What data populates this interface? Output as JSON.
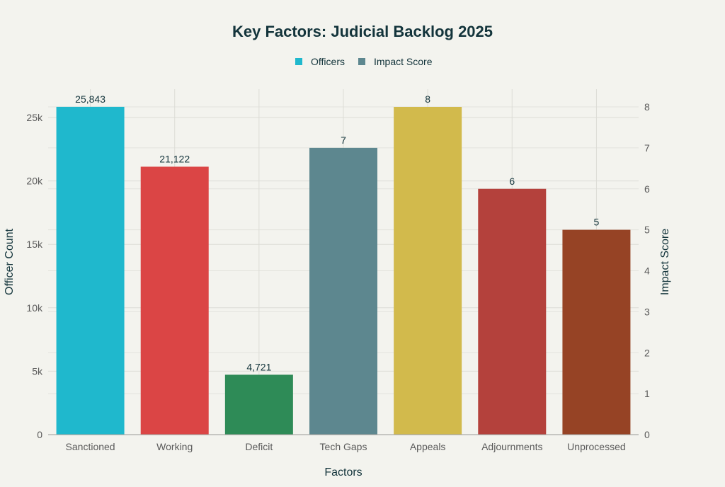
{
  "chart_data": {
    "type": "bar",
    "title": "Key Factors: Judicial Backlog 2025",
    "xlabel": "Factors",
    "ylabel": "Officer Count",
    "y2label": "Impact Score",
    "ylim": [
      0,
      25000
    ],
    "y2lim": [
      0,
      8
    ],
    "yticks": [
      0,
      5000,
      10000,
      15000,
      20000,
      25000
    ],
    "ytick_labels": [
      "0",
      "5k",
      "10k",
      "15k",
      "20k",
      "25k"
    ],
    "y2ticks": [
      0,
      1,
      2,
      3,
      4,
      5,
      6,
      7,
      8
    ],
    "y2tick_labels": [
      "0",
      "1",
      "2",
      "3",
      "4",
      "5",
      "6",
      "7",
      "8"
    ],
    "grid": true,
    "legend_position": "top-center",
    "legend": [
      {
        "name": "Officers",
        "color": "#1FB8CD"
      },
      {
        "name": "Impact Score",
        "color": "#5D878F"
      }
    ],
    "bars": [
      {
        "category": "Sanctioned",
        "series": "Officers",
        "value": 25843,
        "label": "25,843",
        "axis": "left",
        "color": "#1FB8CD"
      },
      {
        "category": "Working",
        "series": "Officers",
        "value": 21122,
        "label": "21,122",
        "axis": "left",
        "color": "#DB4545"
      },
      {
        "category": "Deficit",
        "series": "Officers",
        "value": 4721,
        "label": "4,721",
        "axis": "left",
        "color": "#2E8B57"
      },
      {
        "category": "Tech Gaps",
        "series": "Impact Score",
        "value": 7,
        "label": "7",
        "axis": "right",
        "color": "#5D878F"
      },
      {
        "category": "Appeals",
        "series": "Impact Score",
        "value": 8,
        "label": "8",
        "axis": "right",
        "color": "#D2BA4C"
      },
      {
        "category": "Adjournments",
        "series": "Impact Score",
        "value": 6,
        "label": "6",
        "axis": "right",
        "color": "#B4413C"
      },
      {
        "category": "Unprocessed",
        "series": "Impact Score",
        "value": 5,
        "label": "5",
        "axis": "right",
        "color": "#964325"
      }
    ]
  }
}
